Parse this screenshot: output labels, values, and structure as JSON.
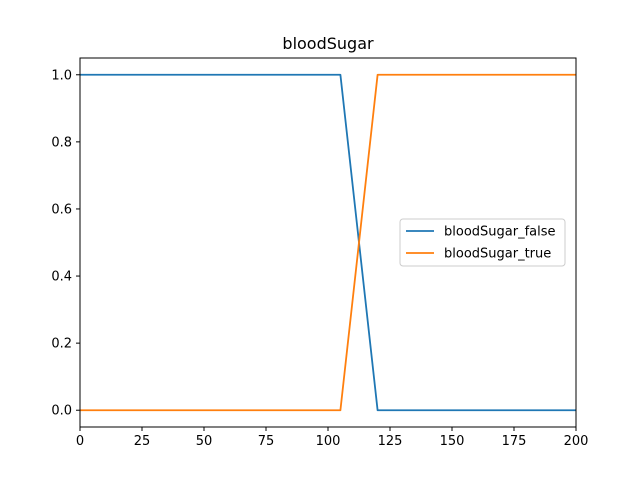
{
  "chart_data": {
    "type": "line",
    "title": "bloodSugar",
    "xlabel": "",
    "ylabel": "",
    "xlim": [
      0,
      200
    ],
    "ylim": [
      -0.05,
      1.05
    ],
    "xticks": [
      0,
      25,
      50,
      75,
      100,
      125,
      150,
      175,
      200
    ],
    "yticks": [
      0.0,
      0.2,
      0.4,
      0.6,
      0.8,
      1.0
    ],
    "xtick_labels": [
      "0",
      "25",
      "50",
      "75",
      "100",
      "125",
      "150",
      "175",
      "200"
    ],
    "ytick_labels": [
      "0.0",
      "0.2",
      "0.4",
      "0.6",
      "0.8",
      "1.0"
    ],
    "grid": false,
    "legend_position": "center-right",
    "series": [
      {
        "name": "bloodSugar_false",
        "color": "#1f77b4",
        "x": [
          0,
          105,
          120,
          200
        ],
        "y": [
          1,
          1,
          0,
          0
        ]
      },
      {
        "name": "bloodSugar_true",
        "color": "#ff7f0e",
        "x": [
          0,
          105,
          120,
          200
        ],
        "y": [
          0,
          0,
          1,
          1
        ]
      }
    ]
  }
}
